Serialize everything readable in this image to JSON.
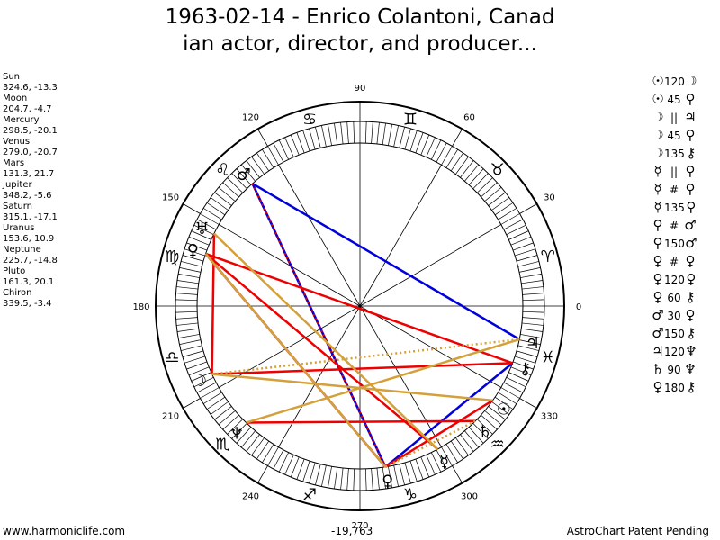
{
  "title": {
    "line1": "1963-02-14 - Enrico Colantoni, Canad",
    "line2": "ian actor, director, and producer..."
  },
  "positions": [
    {
      "name": "Sun",
      "coords": "324.6, -13.3"
    },
    {
      "name": "Moon",
      "coords": "204.7, -4.7"
    },
    {
      "name": "Mercury",
      "coords": "298.5, -20.1"
    },
    {
      "name": "Venus",
      "coords": "279.0, -20.7"
    },
    {
      "name": "Mars",
      "coords": "131.3, 21.7"
    },
    {
      "name": "Jupiter",
      "coords": "348.2, -5.6"
    },
    {
      "name": "Saturn",
      "coords": "315.1, -17.1"
    },
    {
      "name": "Uranus",
      "coords": "153.6, 10.9"
    },
    {
      "name": "Neptune",
      "coords": "225.7, -14.8"
    },
    {
      "name": "Pluto",
      "coords": "161.3, 20.1"
    },
    {
      "name": "Chiron",
      "coords": "339.5, -3.4"
    }
  ],
  "aspects": [
    {
      "p1": "☉",
      "a": "120",
      "p2": "☽"
    },
    {
      "p1": "☉",
      "a": "45",
      "p2": "♀"
    },
    {
      "p1": "☽",
      "a": "||",
      "p2": "♃"
    },
    {
      "p1": "☽",
      "a": "45",
      "p2": "♀"
    },
    {
      "p1": "☽",
      "a": "135",
      "p2": "⚷"
    },
    {
      "p1": "☿",
      "a": "||",
      "p2": "♀"
    },
    {
      "p1": "☿",
      "a": "#",
      "p2": "♀"
    },
    {
      "p1": "☿",
      "a": "135",
      "p2": "♀"
    },
    {
      "p1": "♀",
      "a": "#",
      "p2": "♂"
    },
    {
      "p1": "♀",
      "a": "150",
      "p2": "♂"
    },
    {
      "p1": "♀",
      "a": "#",
      "p2": "♀"
    },
    {
      "p1": "♀",
      "a": "120",
      "p2": "♀"
    },
    {
      "p1": "♀",
      "a": "60",
      "p2": "⚷"
    },
    {
      "p1": "♂",
      "a": "30",
      "p2": "♀"
    },
    {
      "p1": "♂",
      "a": "150",
      "p2": "⚷"
    },
    {
      "p1": "♃",
      "a": "120",
      "p2": "♆"
    },
    {
      "p1": "♄",
      "a": "90",
      "p2": "♆"
    },
    {
      "p1": "♀",
      "a": "180",
      "p2": "⚷"
    }
  ],
  "wheel": {
    "degree_labels": [
      "0",
      "30",
      "60",
      "90",
      "120",
      "150",
      "180",
      "210",
      "240",
      "270",
      "300",
      "330"
    ],
    "sign_glyphs": [
      {
        "lon": 15,
        "glyph": "♈"
      },
      {
        "lon": 45,
        "glyph": "♉"
      },
      {
        "lon": 75,
        "glyph": "♊"
      },
      {
        "lon": 105,
        "glyph": "♋"
      },
      {
        "lon": 135,
        "glyph": "♌"
      },
      {
        "lon": 165,
        "glyph": "♍"
      },
      {
        "lon": 195,
        "glyph": "♎"
      },
      {
        "lon": 225,
        "glyph": "♏"
      },
      {
        "lon": 255,
        "glyph": "♐"
      },
      {
        "lon": 285,
        "glyph": "♑"
      },
      {
        "lon": 315,
        "glyph": "♒"
      },
      {
        "lon": 345,
        "glyph": "♓"
      }
    ],
    "planets": [
      {
        "key": "sun",
        "glyph": "☉",
        "lon": 324.6
      },
      {
        "key": "moon",
        "glyph": "☽",
        "lon": 204.7
      },
      {
        "key": "mercury",
        "glyph": "☿",
        "lon": 298.5
      },
      {
        "key": "venus",
        "glyph": "♀",
        "lon": 279.0
      },
      {
        "key": "mars",
        "glyph": "♂",
        "lon": 131.3
      },
      {
        "key": "jupiter",
        "glyph": "♃",
        "lon": 348.2
      },
      {
        "key": "saturn",
        "glyph": "♄",
        "lon": 315.1
      },
      {
        "key": "uranus",
        "glyph": "♅",
        "lon": 153.6
      },
      {
        "key": "neptune",
        "glyph": "♆",
        "lon": 225.7
      },
      {
        "key": "pluto",
        "glyph": "♀",
        "lon": 161.3
      },
      {
        "key": "chiron",
        "glyph": "⚷",
        "lon": 339.5
      }
    ],
    "aspect_lines": [
      {
        "from": "mars",
        "to": "venus",
        "color": "#0000dd",
        "style": "solid"
      },
      {
        "from": "mars",
        "to": "jupiter",
        "color": "#0000dd",
        "style": "solid"
      },
      {
        "from": "mars",
        "to": "venus",
        "color": "#0000dd",
        "style": "solid"
      },
      {
        "from": "pluto",
        "to": "venus",
        "color": "#0000dd",
        "style": "solid"
      },
      {
        "from": "venus",
        "to": "chiron",
        "color": "#0000dd",
        "style": "solid"
      },
      {
        "from": "mars",
        "to": "venus",
        "color": "#dd0000",
        "style": "dotted"
      },
      {
        "from": "pluto",
        "to": "chiron",
        "color": "#ee0000",
        "style": "solid"
      },
      {
        "from": "pluto",
        "to": "mercury",
        "color": "#ee0000",
        "style": "solid"
      },
      {
        "from": "pluto",
        "to": "venus",
        "color": "#ee0000",
        "style": "solid"
      },
      {
        "from": "moon",
        "to": "chiron",
        "color": "#ee0000",
        "style": "solid"
      },
      {
        "from": "moon",
        "to": "uranus",
        "color": "#ee0000",
        "style": "solid"
      },
      {
        "from": "neptune",
        "to": "saturn",
        "color": "#ee0000",
        "style": "solid"
      },
      {
        "from": "sun",
        "to": "venus",
        "color": "#ee0000",
        "style": "solid"
      },
      {
        "from": "sun",
        "to": "moon",
        "color": "#d4a03a",
        "style": "solid"
      },
      {
        "from": "neptune",
        "to": "jupiter",
        "color": "#d4a03a",
        "style": "solid"
      },
      {
        "from": "pluto",
        "to": "venus",
        "color": "#d4a03a",
        "style": "solid"
      },
      {
        "from": "uranus",
        "to": "mercury",
        "color": "#d4a03a",
        "style": "solid"
      },
      {
        "from": "moon",
        "to": "jupiter",
        "color": "#d4a03a",
        "style": "dotted"
      },
      {
        "from": "venus",
        "to": "saturn",
        "color": "#d4a03a",
        "style": "dotted"
      }
    ]
  },
  "footer": {
    "website": "www.harmoniclife.com",
    "center_value": "-19,763",
    "credit": "AstroChart Patent Pending"
  }
}
